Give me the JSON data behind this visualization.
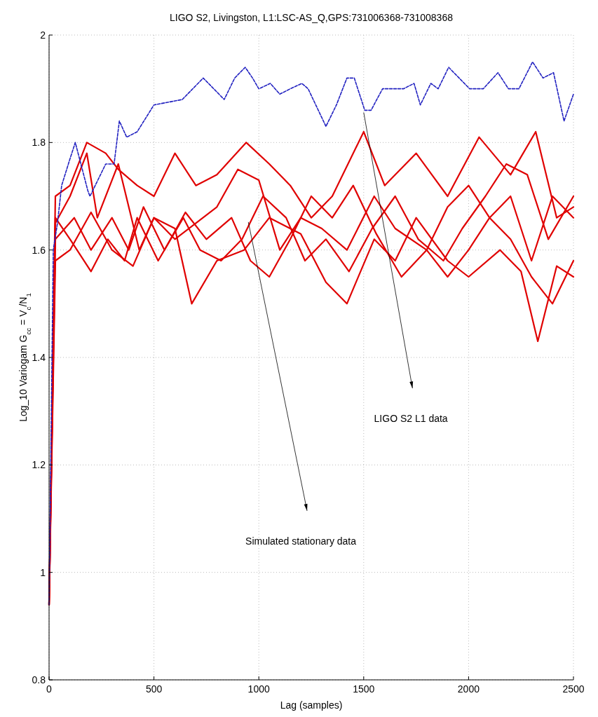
{
  "chart_data": {
    "type": "line",
    "title": "LIGO S2, Livingston, L1:LSC-AS_Q,GPS:731006368-731008368",
    "xlabel": "Lag (samples)",
    "ylabel": "Log_10 Variogam G$_{cc}$ = V$_{c}$/N$_{1}$",
    "xlim": [
      0,
      2500
    ],
    "xticks": [
      0,
      500,
      1000,
      1500,
      2000,
      2500
    ],
    "ylim": [
      0.8,
      2
    ],
    "yticks": [
      {
        "value": 0.8,
        "label": "0.8"
      },
      {
        "value": 1,
        "label": "1"
      },
      {
        "value": 1.2,
        "label": "1.2"
      },
      {
        "value": 1.4,
        "label": "1.4"
      },
      {
        "value": 1.6,
        "label": "1.6"
      },
      {
        "value": 1.8,
        "label": "1.8"
      },
      {
        "value": 2,
        "label": "2"
      }
    ],
    "grid": true,
    "annotations": [
      "LIGO S2 L1 data",
      "Simulated stationary data"
    ],
    "series": [
      {
        "color": "#e00000",
        "x": [
          0,
          30,
          100,
          180,
          270,
          330,
          420,
          500,
          600,
          700,
          800,
          940,
          1050,
          1150,
          1250,
          1350,
          1500,
          1600,
          1750,
          1900,
          2050,
          2200,
          2320,
          2420,
          2500
        ],
        "values": [
          0.94,
          1.7,
          1.72,
          1.8,
          1.78,
          1.75,
          1.72,
          1.7,
          1.78,
          1.72,
          1.74,
          1.8,
          1.76,
          1.72,
          1.66,
          1.7,
          1.82,
          1.72,
          1.78,
          1.7,
          1.81,
          1.74,
          1.82,
          1.66,
          1.68
        ]
      },
      {
        "color": "#e00000",
        "x": [
          0,
          30,
          100,
          180,
          230,
          330,
          430,
          500,
          600,
          680,
          800,
          930,
          1050,
          1200,
          1320,
          1420,
          1550,
          1650,
          1750,
          1900,
          2000,
          2150,
          2250,
          2330,
          2420,
          2500
        ],
        "values": [
          0.94,
          1.65,
          1.7,
          1.78,
          1.66,
          1.76,
          1.6,
          1.66,
          1.64,
          1.5,
          1.58,
          1.6,
          1.66,
          1.63,
          1.54,
          1.5,
          1.62,
          1.58,
          1.66,
          1.58,
          1.55,
          1.6,
          1.56,
          1.43,
          1.57,
          1.55
        ]
      },
      {
        "color": "#e00000",
        "x": [
          0,
          30,
          100,
          200,
          300,
          400,
          500,
          600,
          700,
          800,
          900,
          1000,
          1100,
          1200,
          1300,
          1420,
          1550,
          1650,
          1800,
          1900,
          2000,
          2100,
          2200,
          2300,
          2400,
          2500
        ],
        "values": [
          0.94,
          1.58,
          1.6,
          1.67,
          1.6,
          1.57,
          1.66,
          1.62,
          1.65,
          1.68,
          1.75,
          1.73,
          1.6,
          1.66,
          1.64,
          1.6,
          1.7,
          1.64,
          1.6,
          1.68,
          1.72,
          1.66,
          1.7,
          1.58,
          1.7,
          1.66
        ]
      },
      {
        "color": "#e00000",
        "x": [
          0,
          30,
          120,
          200,
          300,
          380,
          450,
          550,
          650,
          750,
          870,
          960,
          1050,
          1150,
          1250,
          1350,
          1450,
          1560,
          1680,
          1800,
          1900,
          2000,
          2100,
          2200,
          2300,
          2400,
          2500
        ],
        "values": [
          0.94,
          1.62,
          1.66,
          1.6,
          1.66,
          1.6,
          1.68,
          1.6,
          1.67,
          1.62,
          1.66,
          1.58,
          1.55,
          1.62,
          1.7,
          1.66,
          1.72,
          1.63,
          1.55,
          1.6,
          1.55,
          1.6,
          1.66,
          1.62,
          1.55,
          1.5,
          1.58
        ]
      },
      {
        "color": "#e00000",
        "x": [
          0,
          30,
          100,
          200,
          280,
          360,
          420,
          520,
          640,
          720,
          820,
          920,
          1020,
          1130,
          1220,
          1320,
          1430,
          1540,
          1650,
          1760,
          1880,
          1970,
          2080,
          2180,
          2280,
          2380,
          2500
        ],
        "values": [
          0.94,
          1.66,
          1.62,
          1.56,
          1.62,
          1.58,
          1.66,
          1.58,
          1.66,
          1.6,
          1.58,
          1.62,
          1.7,
          1.66,
          1.58,
          1.62,
          1.56,
          1.64,
          1.7,
          1.62,
          1.58,
          1.64,
          1.7,
          1.76,
          1.74,
          1.62,
          1.7
        ]
      },
      {
        "color": "#2020c0",
        "line_style": "dashed",
        "x": [
          0,
          20,
          40,
          60,
          100,
          125,
          185,
          195,
          270,
          310,
          335,
          370,
          420,
          500,
          635,
          735,
          785,
          835,
          885,
          935,
          970,
          1000,
          1055,
          1100,
          1150,
          1205,
          1235,
          1320,
          1370,
          1420,
          1455,
          1505,
          1535,
          1590,
          1640,
          1690,
          1740,
          1770,
          1820,
          1855,
          1905,
          1955,
          2005,
          2070,
          2140,
          2190,
          2240,
          2305,
          2355,
          2405,
          2455,
          2500
        ],
        "values": [
          0.94,
          1.6,
          1.65,
          1.72,
          1.77,
          1.8,
          1.71,
          1.7,
          1.76,
          1.76,
          1.84,
          1.81,
          1.82,
          1.87,
          1.88,
          1.92,
          1.9,
          1.88,
          1.92,
          1.94,
          1.92,
          1.9,
          1.91,
          1.89,
          1.9,
          1.91,
          1.9,
          1.83,
          1.87,
          1.92,
          1.92,
          1.86,
          1.86,
          1.9,
          1.9,
          1.9,
          1.91,
          1.87,
          1.91,
          1.9,
          1.94,
          1.92,
          1.9,
          1.9,
          1.93,
          1.9,
          1.9,
          1.95,
          1.92,
          1.93,
          1.84,
          1.89
        ]
      }
    ]
  }
}
